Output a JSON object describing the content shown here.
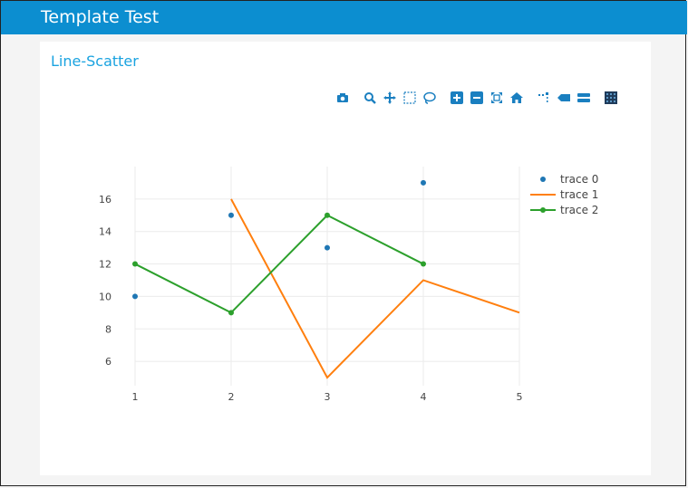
{
  "app": {
    "title": "Template Test"
  },
  "card": {
    "title": "Line-Scatter"
  },
  "modebar": {
    "buttons": [
      "camera-icon",
      "zoom-icon",
      "pan-icon",
      "box-select-icon",
      "lasso-icon",
      "zoom-in-icon",
      "zoom-out-icon",
      "autoscale-icon",
      "home-icon",
      "spike-lines-icon",
      "hover-closest-icon",
      "hover-compare-icon",
      "plotly-logo-icon"
    ]
  },
  "chart_data": {
    "type": "scatter",
    "xlim": [
      1,
      5
    ],
    "ylim": [
      4.5,
      18
    ],
    "x_ticks": [
      1,
      2,
      3,
      4,
      5
    ],
    "y_ticks": [
      6,
      8,
      10,
      12,
      14,
      16
    ],
    "grid": true,
    "legend_position": "top-right",
    "series": [
      {
        "name": "trace 0",
        "mode": "markers",
        "color": "#1f77b4",
        "x": [
          1,
          2,
          3,
          4
        ],
        "y": [
          10,
          15,
          13,
          17
        ]
      },
      {
        "name": "trace 1",
        "mode": "lines",
        "color": "#ff7f0e",
        "x": [
          2,
          3,
          4,
          5
        ],
        "y": [
          16,
          5,
          11,
          9
        ]
      },
      {
        "name": "trace 2",
        "mode": "lines+markers",
        "color": "#2ca02c",
        "x": [
          1,
          2,
          3,
          4
        ],
        "y": [
          12,
          9,
          15,
          12
        ]
      }
    ]
  }
}
